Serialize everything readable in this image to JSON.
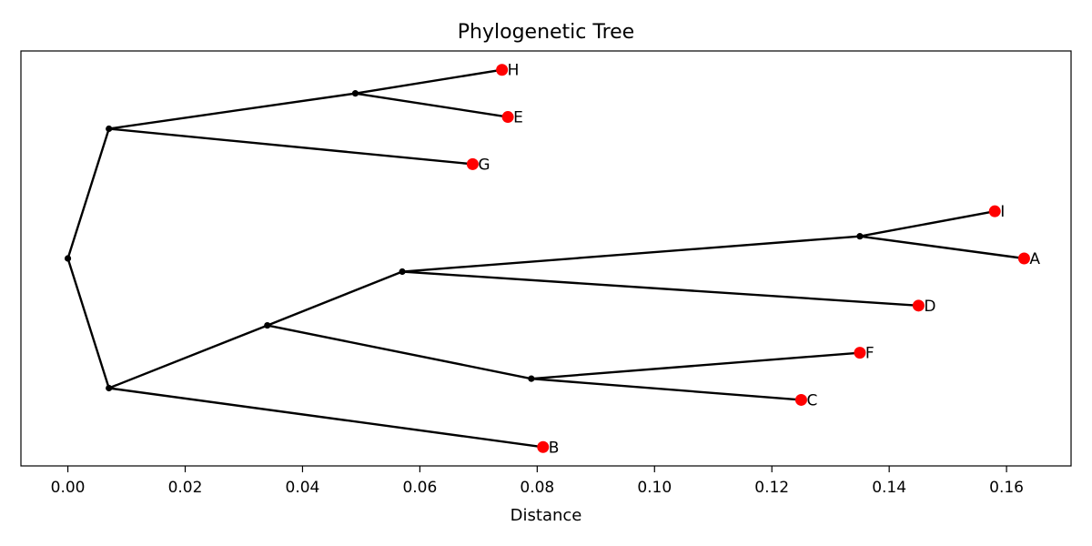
{
  "chart_data": {
    "type": "tree",
    "title": "Phylogenetic Tree",
    "xlabel": "Distance",
    "xlim": [
      -0.008,
      0.171
    ],
    "ylim": [
      -4.4,
      4.4
    ],
    "x_ticks": [
      0.0,
      0.02,
      0.04,
      0.06,
      0.08,
      0.1,
      0.12,
      0.14,
      0.16
    ],
    "x_tick_labels": [
      "0.00",
      "0.02",
      "0.04",
      "0.06",
      "0.08",
      "0.10",
      "0.12",
      "0.14",
      "0.16"
    ],
    "grid": false,
    "colors": {
      "branch": "#000000",
      "leaf": "#ff0000",
      "internal": "#000000"
    },
    "nodes": [
      {
        "id": "root",
        "x": 0.0,
        "y": 0.0
      },
      {
        "id": "n1",
        "x": 0.007,
        "y": 2.75
      },
      {
        "id": "n2",
        "x": 0.049,
        "y": 3.5
      },
      {
        "id": "n3",
        "x": 0.007,
        "y": -2.75
      },
      {
        "id": "n4",
        "x": 0.034,
        "y": -1.42
      },
      {
        "id": "n5",
        "x": 0.057,
        "y": -0.28
      },
      {
        "id": "n6",
        "x": 0.135,
        "y": 0.47
      },
      {
        "id": "n7",
        "x": 0.079,
        "y": -2.55
      }
    ],
    "leaves": [
      {
        "id": "H",
        "label": "H",
        "x": 0.074,
        "y": 4.0
      },
      {
        "id": "E",
        "label": "E",
        "x": 0.075,
        "y": 3.0
      },
      {
        "id": "G",
        "label": "G",
        "x": 0.069,
        "y": 2.0
      },
      {
        "id": "I",
        "label": "I",
        "x": 0.158,
        "y": 1.0
      },
      {
        "id": "A",
        "label": "A",
        "x": 0.163,
        "y": 0.0
      },
      {
        "id": "D",
        "label": "D",
        "x": 0.145,
        "y": -1.0
      },
      {
        "id": "F",
        "label": "F",
        "x": 0.135,
        "y": -2.0
      },
      {
        "id": "C",
        "label": "C",
        "x": 0.125,
        "y": -3.0
      },
      {
        "id": "B",
        "label": "B",
        "x": 0.081,
        "y": -4.0
      }
    ],
    "edges": [
      [
        "root",
        "n1"
      ],
      [
        "root",
        "n3"
      ],
      [
        "n1",
        "n2"
      ],
      [
        "n1",
        "G"
      ],
      [
        "n2",
        "H"
      ],
      [
        "n2",
        "E"
      ],
      [
        "n3",
        "n4"
      ],
      [
        "n3",
        "B"
      ],
      [
        "n4",
        "n5"
      ],
      [
        "n4",
        "n7"
      ],
      [
        "n5",
        "n6"
      ],
      [
        "n5",
        "D"
      ],
      [
        "n6",
        "I"
      ],
      [
        "n6",
        "A"
      ],
      [
        "n7",
        "F"
      ],
      [
        "n7",
        "C"
      ]
    ]
  }
}
